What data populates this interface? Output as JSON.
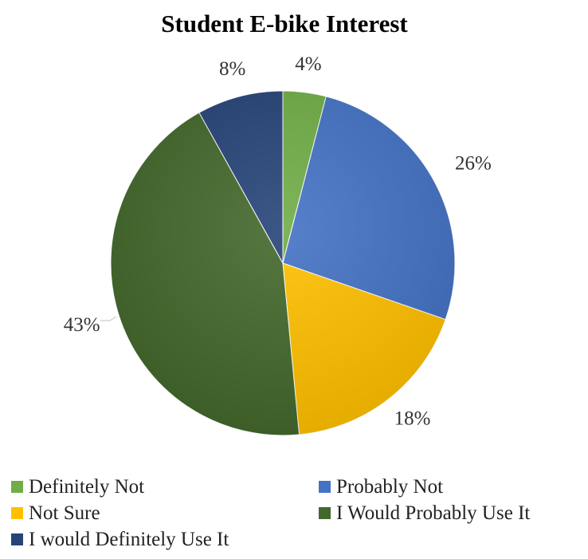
{
  "chart_data": {
    "type": "pie",
    "title": "Student E-bike Interest",
    "categories": [
      "Definitely Not",
      "Probably Not",
      "Not Sure",
      "I Would Probably Use It",
      "I would Definitely Use It"
    ],
    "values": [
      4,
      26,
      18,
      43,
      8
    ],
    "value_labels": [
      "4%",
      "26%",
      "18%",
      "43%",
      "8%"
    ],
    "colors": [
      "#70AD47",
      "#4472C4",
      "#FFC000",
      "#43682B",
      "#264478"
    ],
    "legend_placement": "bottom",
    "start_angle": "12 o'clock",
    "direction": "clockwise"
  }
}
